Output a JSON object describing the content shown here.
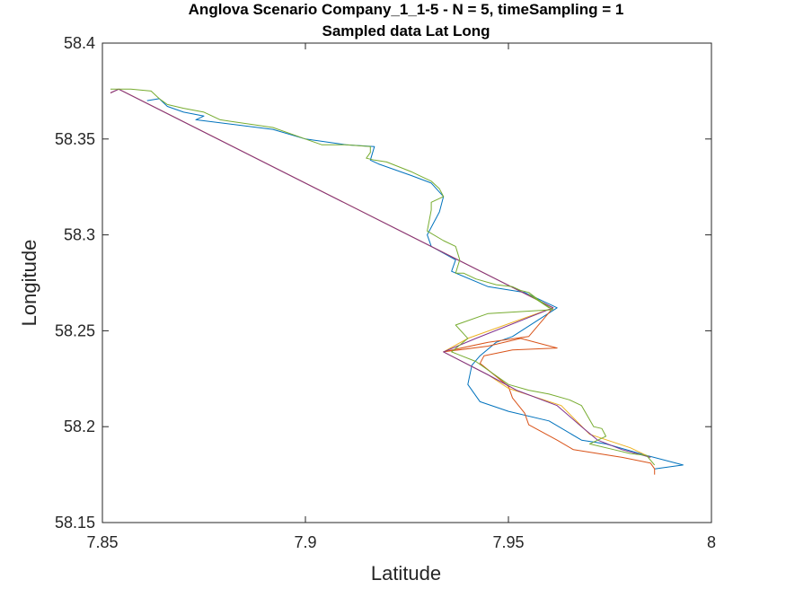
{
  "chart_data": {
    "type": "line",
    "title": "Anglova Scenario Company_1_1-5 - N = 5, timeSampling = 1",
    "subtitle": "Sampled data Lat Long",
    "xlabel": "Latitude",
    "ylabel": "Longitude",
    "xlim": [
      7.85,
      8.0
    ],
    "ylim": [
      58.15,
      58.4
    ],
    "xticks": [
      "7.85",
      "7.9",
      "7.95",
      "8"
    ],
    "yticks": [
      "58.15",
      "58.2",
      "58.25",
      "58.3",
      "58.35",
      "58.4"
    ],
    "grid": false,
    "legend": "none",
    "series": [
      {
        "color": "#0072BD",
        "x": [
          7.861,
          7.864,
          7.866,
          7.87,
          7.875,
          7.873,
          7.892,
          7.9,
          7.91,
          7.917,
          7.916,
          7.918,
          7.926,
          7.931,
          7.934,
          7.933,
          7.93,
          7.931,
          7.937,
          7.936,
          7.945,
          7.954,
          7.959,
          7.962,
          7.951,
          7.947,
          7.943,
          7.941,
          7.94,
          7.943,
          7.95,
          7.96,
          7.968,
          7.974,
          7.984,
          7.993,
          7.986
        ],
        "y": [
          58.37,
          58.371,
          58.367,
          58.364,
          58.362,
          58.36,
          58.355,
          58.35,
          58.347,
          58.346,
          58.339,
          58.337,
          58.331,
          58.327,
          58.32,
          58.312,
          58.3,
          58.294,
          58.287,
          58.281,
          58.273,
          58.27,
          58.265,
          58.262,
          58.247,
          58.244,
          58.237,
          58.232,
          58.222,
          58.213,
          58.208,
          58.203,
          58.193,
          58.191,
          58.185,
          58.18,
          58.178
        ]
      },
      {
        "color": "#D95319",
        "x": [
          7.852,
          7.854,
          7.855,
          7.961,
          7.955,
          7.945,
          7.934,
          7.945,
          7.953,
          7.962,
          7.951,
          7.944,
          7.943,
          7.95,
          7.951,
          7.954,
          7.955,
          7.962,
          7.966,
          7.978,
          7.985,
          7.986,
          7.986
        ],
        "y": [
          58.374,
          58.376,
          58.375,
          58.262,
          58.247,
          58.244,
          58.239,
          58.242,
          58.246,
          58.241,
          58.24,
          58.237,
          58.233,
          58.221,
          58.215,
          58.207,
          58.201,
          58.193,
          58.188,
          58.184,
          58.181,
          58.178,
          58.175
        ]
      },
      {
        "color": "#EDB120",
        "x": [
          7.852,
          7.854,
          7.961,
          7.94,
          7.934,
          7.945,
          7.95,
          7.963,
          7.97,
          7.98,
          7.985
        ],
        "y": [
          58.374,
          58.376,
          58.262,
          58.246,
          58.239,
          58.227,
          58.22,
          58.211,
          58.196,
          58.189,
          58.184
        ]
      },
      {
        "color": "#7E2F8E",
        "x": [
          7.852,
          7.854,
          7.961,
          7.942,
          7.934,
          7.945,
          7.952,
          7.962,
          7.968,
          7.972,
          7.978,
          7.985
        ],
        "y": [
          58.374,
          58.376,
          58.262,
          58.246,
          58.239,
          58.227,
          58.219,
          58.211,
          58.2,
          58.193,
          58.188,
          58.184
        ]
      },
      {
        "color": "#77AC30",
        "x": [
          7.852,
          7.857,
          7.862,
          7.864,
          7.866,
          7.87,
          7.875,
          7.879,
          7.892,
          7.9,
          7.904,
          7.91,
          7.916,
          7.916,
          7.915,
          7.917,
          7.92,
          7.926,
          7.928,
          7.931,
          7.933,
          7.934,
          7.931,
          7.931,
          7.93,
          7.934,
          7.937,
          7.938,
          7.937,
          7.939,
          7.942,
          7.947,
          7.951,
          7.953,
          7.955,
          7.96,
          7.955,
          7.961,
          7.945,
          7.937,
          7.94,
          7.936,
          7.942,
          7.95,
          7.955,
          7.96,
          7.965,
          7.968,
          7.971,
          7.973,
          7.974,
          7.97,
          7.976,
          7.98,
          7.984,
          7.986
        ],
        "y": [
          58.376,
          58.376,
          58.375,
          58.371,
          58.368,
          58.366,
          58.364,
          58.36,
          58.356,
          58.35,
          58.347,
          58.347,
          58.346,
          58.343,
          58.34,
          58.339,
          58.338,
          58.333,
          58.331,
          58.328,
          58.324,
          58.32,
          58.317,
          58.313,
          58.302,
          58.297,
          58.294,
          58.287,
          58.28,
          58.28,
          58.277,
          58.274,
          58.273,
          58.271,
          58.27,
          58.262,
          58.269,
          58.261,
          58.259,
          58.253,
          58.246,
          58.239,
          58.234,
          58.222,
          58.219,
          58.217,
          58.214,
          58.211,
          58.2,
          58.199,
          58.195,
          58.191,
          58.188,
          58.186,
          58.185,
          58.18
        ]
      }
    ]
  }
}
